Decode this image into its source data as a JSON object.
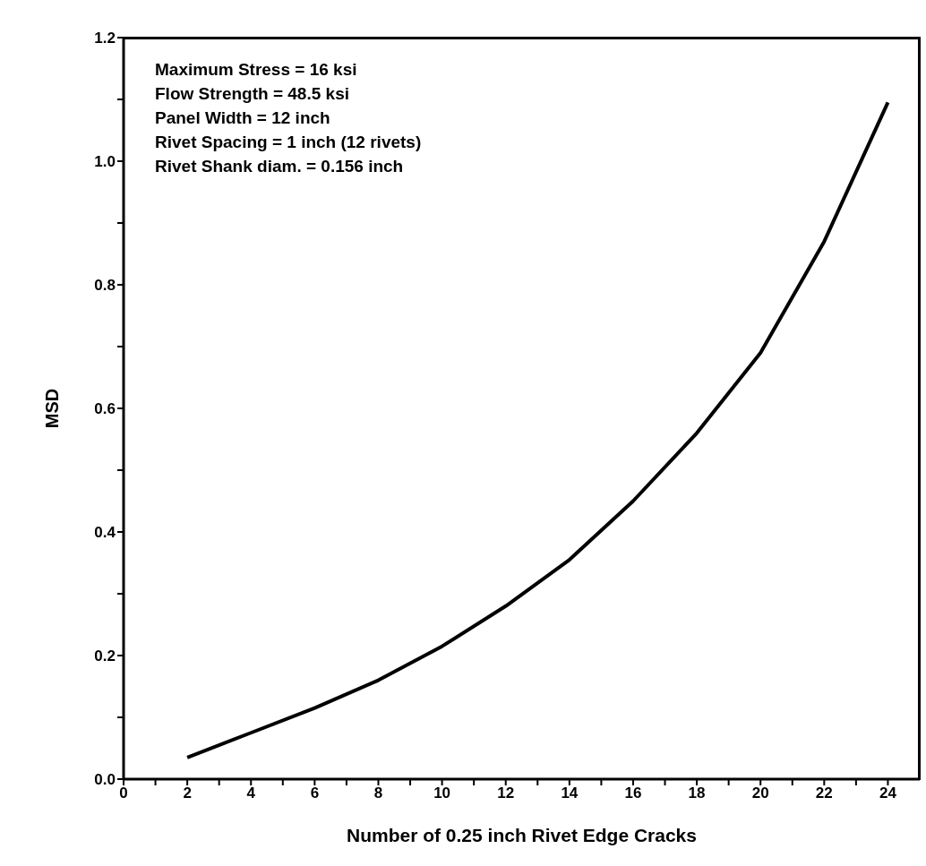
{
  "chart_data": {
    "type": "line",
    "xlabel": "Number of 0.25 inch Rivet Edge Cracks",
    "ylabel": "MSD",
    "x": [
      2,
      4,
      6,
      8,
      10,
      12,
      14,
      16,
      18,
      20,
      22,
      24
    ],
    "series": [
      {
        "color": "#000000",
        "values": [
          0.035,
          0.075,
          0.115,
          0.16,
          0.215,
          0.28,
          0.355,
          0.45,
          0.56,
          0.69,
          0.87,
          1.095
        ]
      }
    ],
    "xlim": [
      0,
      25
    ],
    "xticks": [
      0,
      {
        "value": 1,
        "label": null
      },
      2,
      {
        "value": 3,
        "label": null
      },
      4,
      {
        "value": 5,
        "label": null
      },
      6,
      {
        "value": 7,
        "label": null
      },
      8,
      {
        "value": 9,
        "label": null
      },
      10,
      {
        "value": 11,
        "label": null
      },
      12,
      {
        "value": 13,
        "label": null
      },
      14,
      {
        "value": 15,
        "label": null
      },
      16,
      {
        "value": 17,
        "label": null
      },
      18,
      {
        "value": 19,
        "label": null
      },
      20,
      {
        "value": 21,
        "label": null
      },
      22,
      {
        "value": 23,
        "label": null
      },
      24
    ],
    "ylim": [
      0,
      1.2
    ],
    "yticks": [
      {
        "value": 0,
        "label": "0.0"
      },
      {
        "value": 0.1,
        "label": null
      },
      0.2,
      {
        "value": 0.3,
        "label": null
      },
      0.4,
      {
        "value": 0.5,
        "label": null
      },
      0.6,
      {
        "value": 0.7,
        "label": null
      },
      0.8,
      {
        "value": 0.9,
        "label": null
      },
      {
        "value": 1,
        "label": "1.0"
      },
      {
        "value": 1.1,
        "label": null
      },
      1.2
    ],
    "annotations": [
      "Maximum Stress = 16 ksi",
      "Flow Strength = 48.5 ksi",
      "Panel Width = 12 inch",
      "Rivet Spacing = 1 inch (12 rivets)",
      "Rivet Shank diam. = 0.156 inch"
    ],
    "grid": false,
    "legend": false,
    "marker": "none",
    "line_style": "solid"
  }
}
